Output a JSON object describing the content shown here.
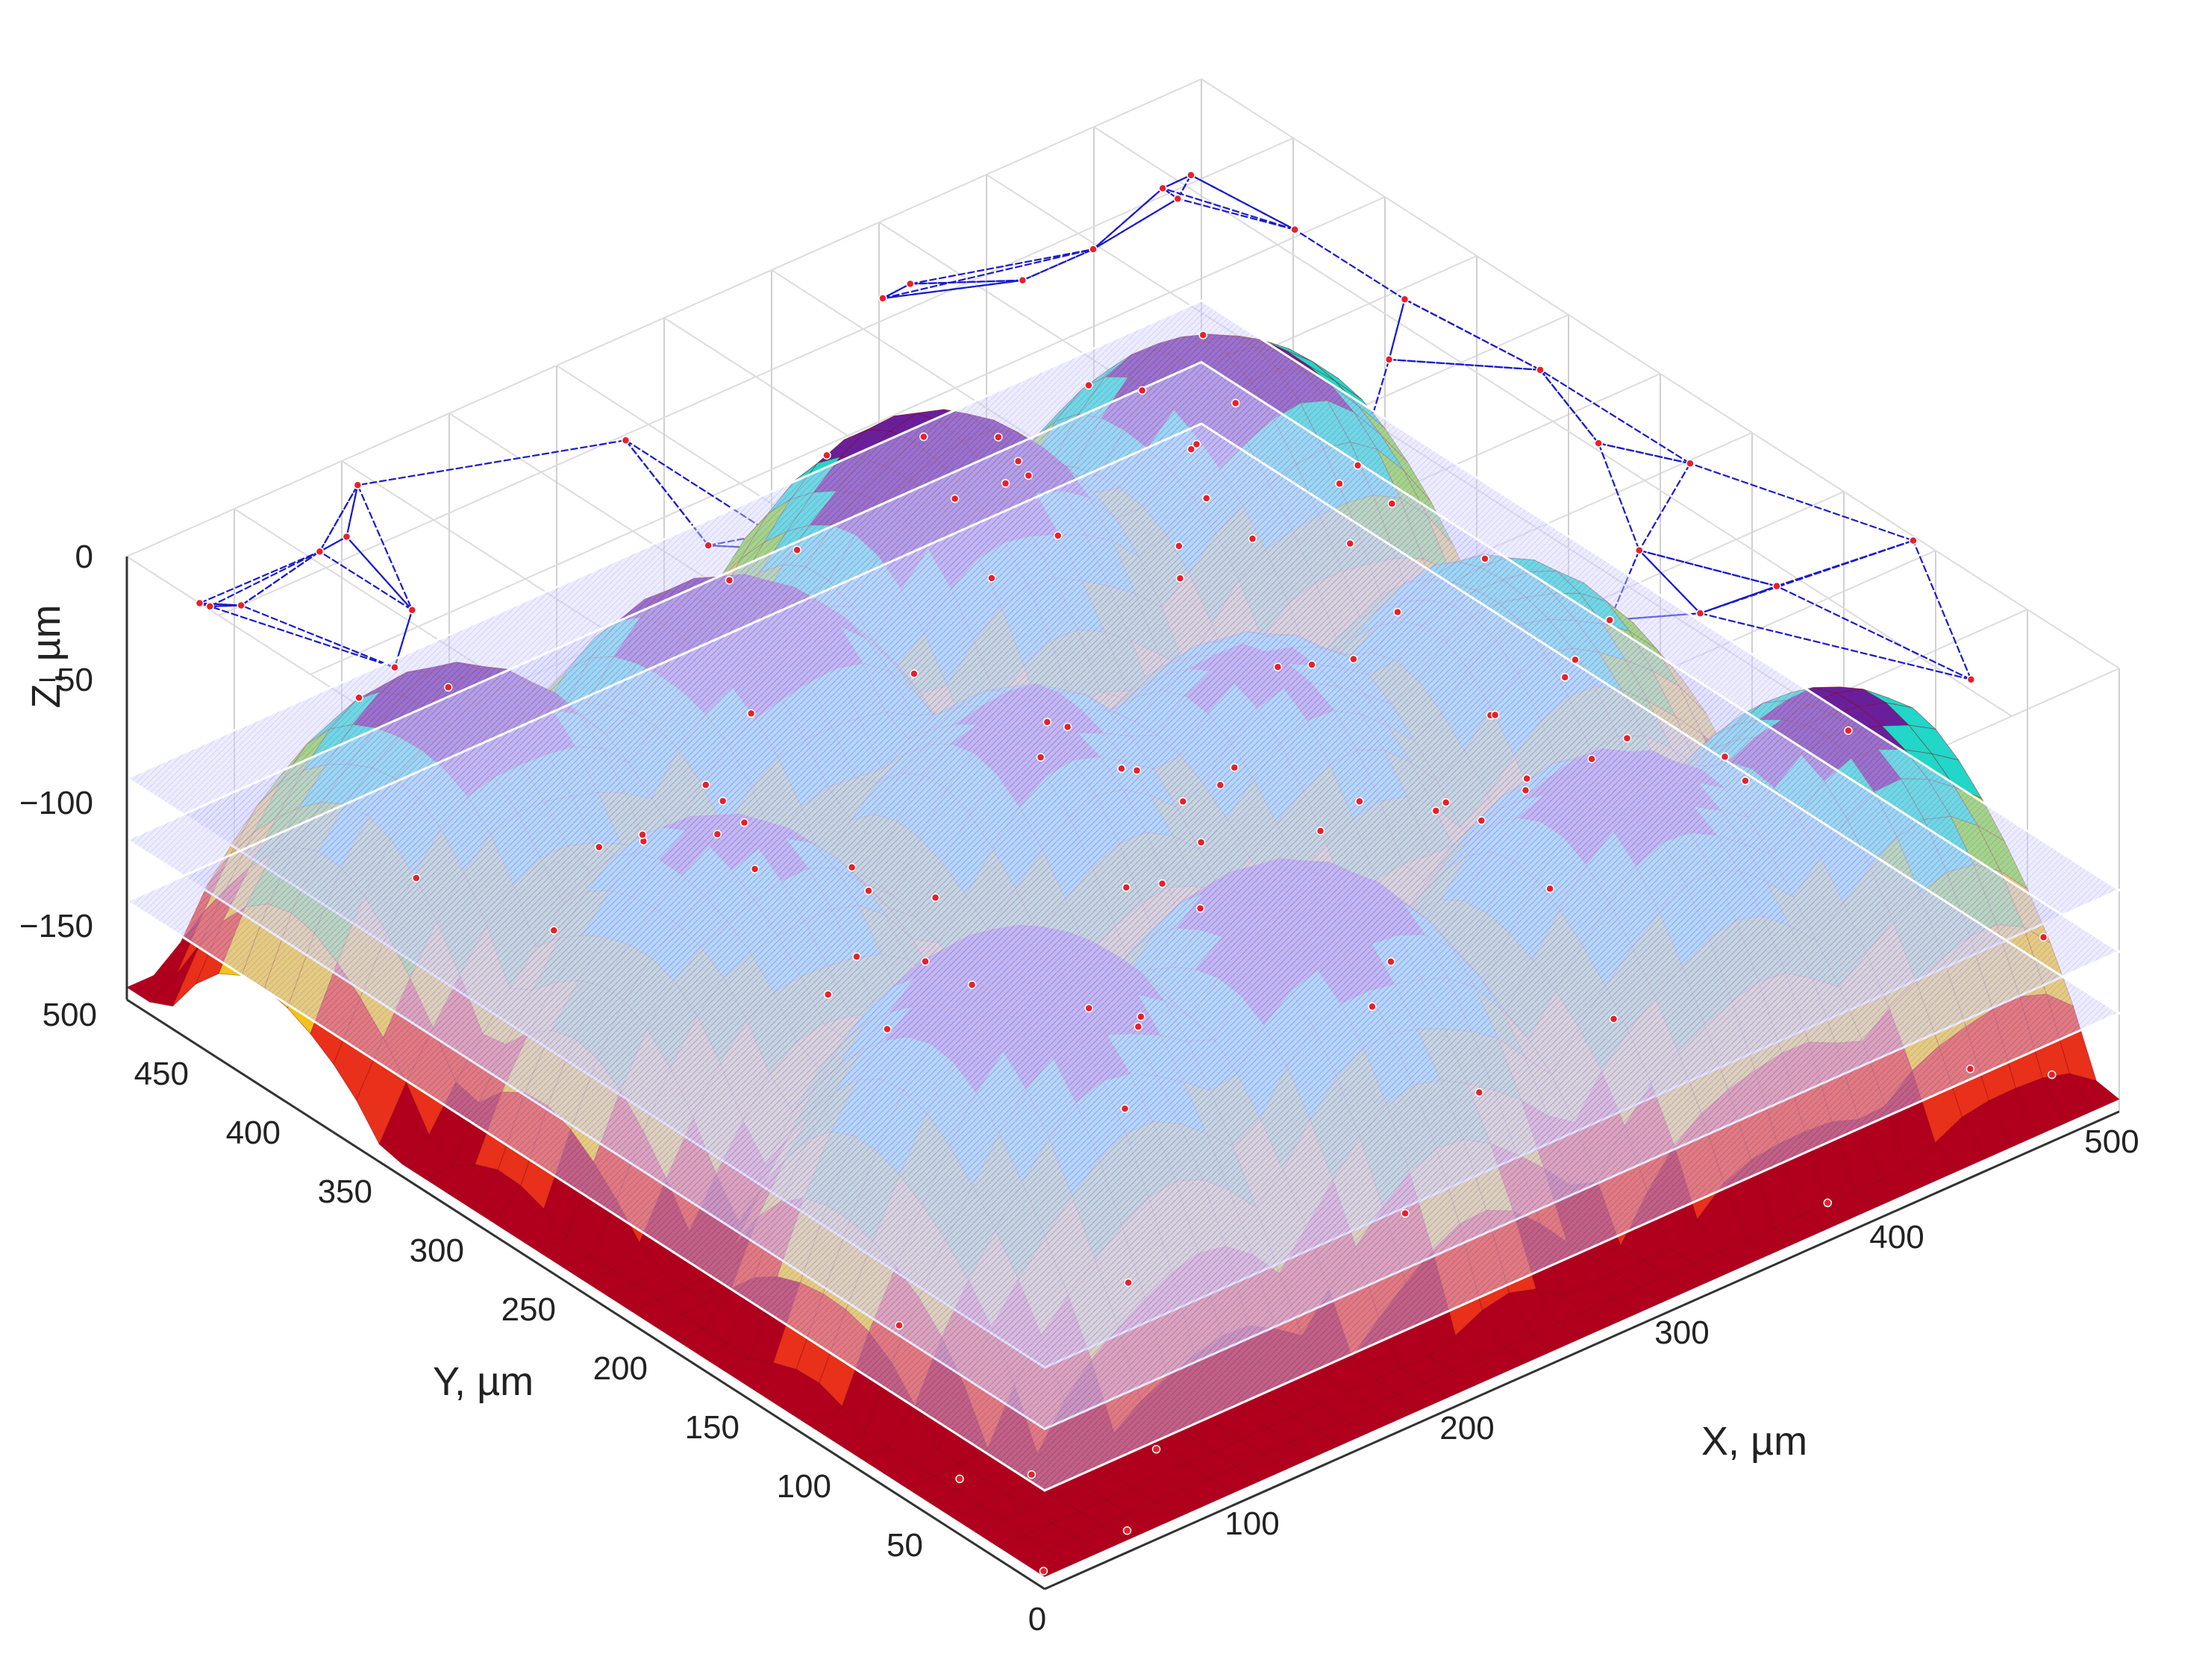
{
  "chart_data": {
    "type": "surface-3d",
    "title": "",
    "xlabel": "X, µm",
    "ylabel": "Y, µm",
    "zlabel": "Z, µm",
    "xlim": [
      0,
      500
    ],
    "ylim": [
      0,
      500
    ],
    "zlim": [
      -180,
      0
    ],
    "x_ticks": [
      "0",
      "100",
      "200",
      "300",
      "400",
      "500"
    ],
    "y_ticks": [
      "50",
      "100",
      "150",
      "200",
      "250",
      "300",
      "350",
      "400",
      "450",
      "500"
    ],
    "z_ticks": [
      "0",
      "−50",
      "−100",
      "−150"
    ],
    "planes_z": [
      -90,
      -115,
      -140
    ],
    "grid": true,
    "colormap": [
      "#b0001e",
      "#e8301a",
      "#f2c21a",
      "#7fd12a",
      "#22d6c8",
      "#6a1f9a",
      "#c01a6a"
    ],
    "voronoi_color": "#1a1acc",
    "point_color": "#e8202a"
  }
}
